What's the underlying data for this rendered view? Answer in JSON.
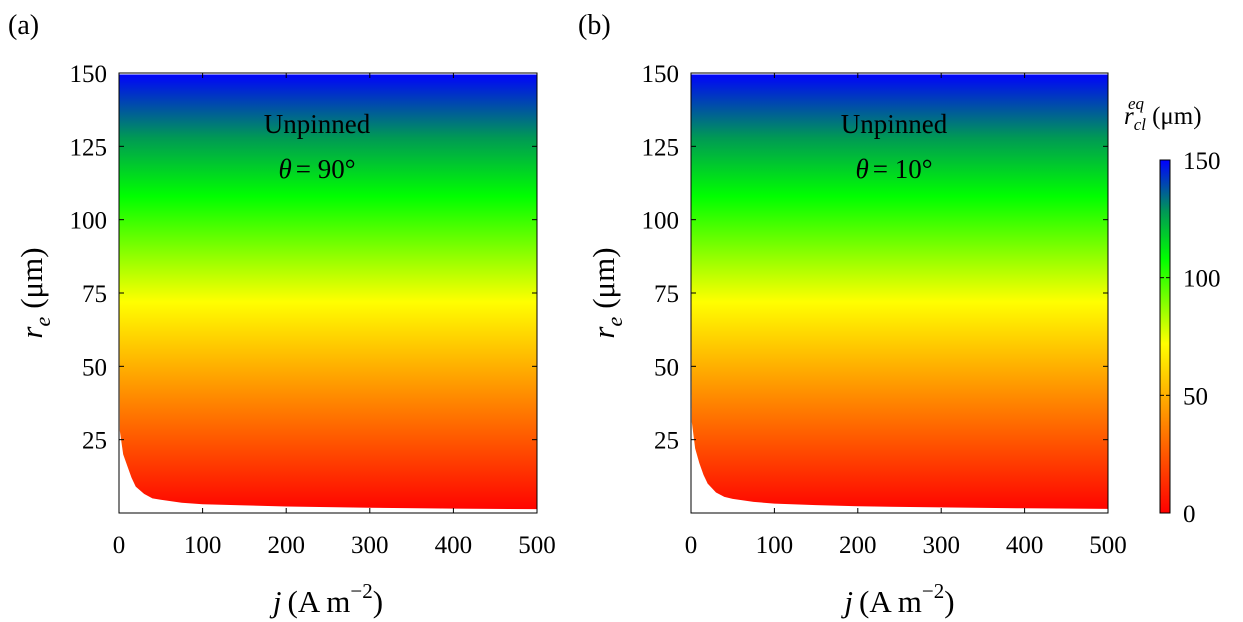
{
  "figure": {
    "colorbar": {
      "label_main": "r",
      "label_sup": "eq",
      "label_sub": "cl",
      "label_unit": "(μm)",
      "ticks": [
        "0",
        "50",
        "100",
        "150"
      ],
      "tick_values": [
        0,
        50,
        100,
        150
      ],
      "range": [
        0,
        150
      ],
      "colormap": [
        {
          "value": 0,
          "color": "#ff0000"
        },
        {
          "value": 40,
          "color": "#ff8c00"
        },
        {
          "value": 72,
          "color": "#ffff00"
        },
        {
          "value": 108,
          "color": "#00ff00"
        },
        {
          "value": 128,
          "color": "#009955"
        },
        {
          "value": 150,
          "color": "#0000ff"
        }
      ]
    }
  },
  "chart_data": [
    {
      "type": "heatmap",
      "panel_label": "(a)",
      "annotation_line1": "Unpinned",
      "annotation_theta": "θ",
      "annotation_value": "= 90°",
      "xlabel_var": "j",
      "xlabel_unit": "(A m",
      "xlabel_exp": "−2",
      "xlabel_close": ")",
      "ylabel_var": "r",
      "ylabel_sub": "e",
      "ylabel_unit": "(μm)",
      "xlim": [
        0,
        500
      ],
      "ylim": [
        0,
        150
      ],
      "xticks": [
        "0",
        "100",
        "200",
        "300",
        "400",
        "500"
      ],
      "xtick_values": [
        0,
        100,
        200,
        300,
        400,
        500
      ],
      "yticks": [
        "25",
        "50",
        "75",
        "100",
        "125",
        "150"
      ],
      "ytick_values": [
        25,
        50,
        75,
        100,
        125,
        150
      ],
      "color_value": "equals r_e (color varies with r_e only)",
      "unpinned_boundary": [
        {
          "j": 0,
          "re": 150
        },
        {
          "j": 1,
          "re": 28
        },
        {
          "j": 5,
          "re": 20
        },
        {
          "j": 10,
          "re": 16
        },
        {
          "j": 15,
          "re": 12
        },
        {
          "j": 20,
          "re": 9
        },
        {
          "j": 30,
          "re": 6.5
        },
        {
          "j": 40,
          "re": 5
        },
        {
          "j": 50,
          "re": 4.5
        },
        {
          "j": 75,
          "re": 3.5
        },
        {
          "j": 100,
          "re": 3
        },
        {
          "j": 150,
          "re": 2.6
        },
        {
          "j": 200,
          "re": 2.2
        },
        {
          "j": 300,
          "re": 1.8
        },
        {
          "j": 400,
          "re": 1.5
        },
        {
          "j": 500,
          "re": 1.3
        }
      ]
    },
    {
      "type": "heatmap",
      "panel_label": "(b)",
      "annotation_line1": "Unpinned",
      "annotation_theta": "θ",
      "annotation_value": "= 10°",
      "xlabel_var": "j",
      "xlabel_unit": "(A m",
      "xlabel_exp": "−2",
      "xlabel_close": ")",
      "ylabel_var": "r",
      "ylabel_sub": "e",
      "ylabel_unit": "(μm)",
      "xlim": [
        0,
        500
      ],
      "ylim": [
        0,
        150
      ],
      "xticks": [
        "0",
        "100",
        "200",
        "300",
        "400",
        "500"
      ],
      "xtick_values": [
        0,
        100,
        200,
        300,
        400,
        500
      ],
      "yticks": [
        "25",
        "50",
        "75",
        "100",
        "125",
        "150"
      ],
      "ytick_values": [
        25,
        50,
        75,
        100,
        125,
        150
      ],
      "color_value": "equals r_e (color varies with r_e only)",
      "unpinned_boundary": [
        {
          "j": 0,
          "re": 150
        },
        {
          "j": 1,
          "re": 31
        },
        {
          "j": 5,
          "re": 22
        },
        {
          "j": 10,
          "re": 17
        },
        {
          "j": 15,
          "re": 13
        },
        {
          "j": 20,
          "re": 10
        },
        {
          "j": 30,
          "re": 7
        },
        {
          "j": 40,
          "re": 5.5
        },
        {
          "j": 50,
          "re": 4.8
        },
        {
          "j": 75,
          "re": 3.8
        },
        {
          "j": 100,
          "re": 3.2
        },
        {
          "j": 150,
          "re": 2.7
        },
        {
          "j": 200,
          "re": 2.3
        },
        {
          "j": 300,
          "re": 1.9
        },
        {
          "j": 400,
          "re": 1.6
        },
        {
          "j": 500,
          "re": 1.4
        }
      ]
    }
  ]
}
